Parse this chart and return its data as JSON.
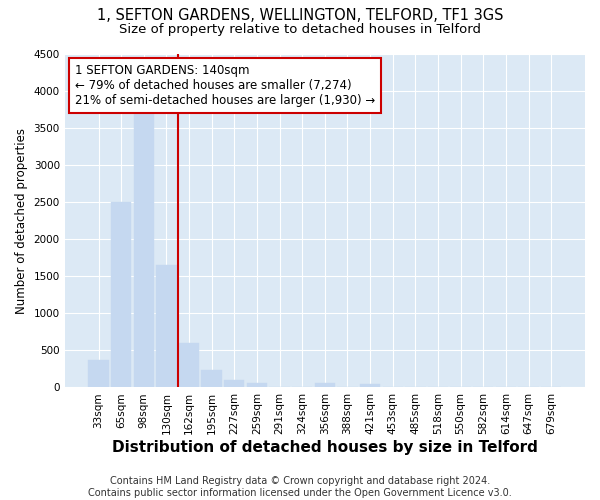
{
  "title_line1": "1, SEFTON GARDENS, WELLINGTON, TELFORD, TF1 3GS",
  "title_line2": "Size of property relative to detached houses in Telford",
  "xlabel": "Distribution of detached houses by size in Telford",
  "ylabel": "Number of detached properties",
  "footer": "Contains HM Land Registry data © Crown copyright and database right 2024.\nContains public sector information licensed under the Open Government Licence v3.0.",
  "bin_labels": [
    "33sqm",
    "65sqm",
    "98sqm",
    "130sqm",
    "162sqm",
    "195sqm",
    "227sqm",
    "259sqm",
    "291sqm",
    "324sqm",
    "356sqm",
    "388sqm",
    "421sqm",
    "453sqm",
    "485sqm",
    "518sqm",
    "550sqm",
    "582sqm",
    "614sqm",
    "647sqm",
    "679sqm"
  ],
  "bar_values": [
    370,
    2500,
    3750,
    1650,
    600,
    240,
    100,
    60,
    0,
    0,
    60,
    0,
    50,
    0,
    0,
    0,
    0,
    0,
    0,
    0,
    0
  ],
  "bar_color": "#c5d8f0",
  "bar_edgecolor": "#c5d8f0",
  "vline_x": 3.5,
  "vline_color": "#cc0000",
  "annotation_text": "1 SEFTON GARDENS: 140sqm\n← 79% of detached houses are smaller (7,274)\n21% of semi-detached houses are larger (1,930) →",
  "annotation_box_color": "#cc0000",
  "annotation_bg": "#ffffff",
  "ylim": [
    0,
    4500
  ],
  "background_color": "#ffffff",
  "plot_bg": "#dce9f5",
  "grid_color": "#ffffff",
  "title1_fontsize": 10.5,
  "title2_fontsize": 9.5,
  "xlabel_fontsize": 11,
  "ylabel_fontsize": 8.5,
  "tick_fontsize": 7.5,
  "footer_fontsize": 7,
  "ann_fontsize": 8.5
}
